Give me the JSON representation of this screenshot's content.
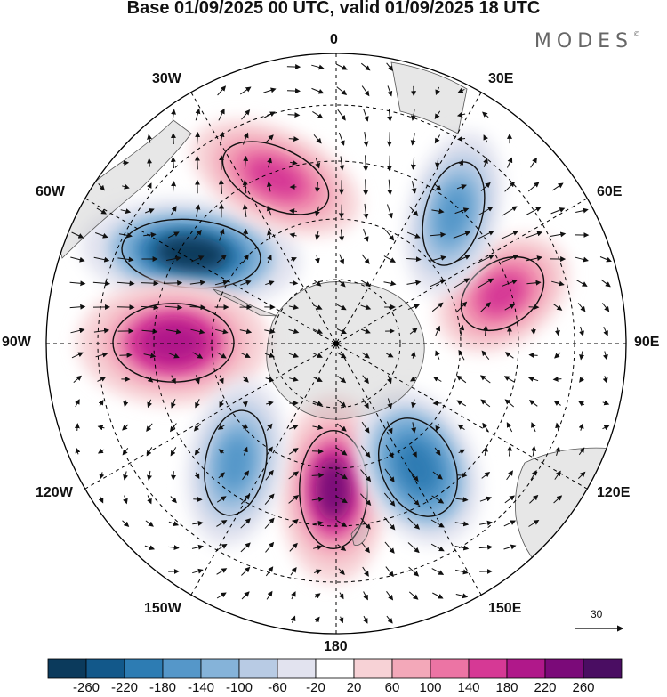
{
  "title": "Base 01/09/2025 00 UTC, valid 01/09/2025 18 UTC",
  "brand": "MODES",
  "brand_mark": "©",
  "longitude_labels": [
    "0",
    "30E",
    "60E",
    "90E",
    "120E",
    "150E",
    "180",
    "150W",
    "120W",
    "90W",
    "60W",
    "30W"
  ],
  "reference_vector_label": "30",
  "colorbar": {
    "labels": [
      "-260",
      "-220",
      "-180",
      "-140",
      "-100",
      "-60",
      "-20",
      "20",
      "60",
      "100",
      "140",
      "180",
      "220",
      "260"
    ],
    "colors": [
      "#0b3a5c",
      "#12588a",
      "#2d7cb3",
      "#5597c9",
      "#85b3d9",
      "#b8cbe4",
      "#e2e3ef",
      "#ffffff",
      "#f7d2d6",
      "#f3a8b9",
      "#ec74a4",
      "#d63995",
      "#b0188a",
      "#7b0a79",
      "#4a0d62"
    ]
  },
  "anomaly_centers": [
    {
      "name": "negative-south-atlantic",
      "sign": -1,
      "strength": 270
    },
    {
      "name": "positive-southeast-pacific",
      "sign": 1,
      "strength": 230
    },
    {
      "name": "positive-south-atlantic-north",
      "sign": 1,
      "strength": 180
    },
    {
      "name": "positive-indian-ocean",
      "sign": 1,
      "strength": 190
    },
    {
      "name": "positive-ross-sea",
      "sign": 1,
      "strength": 240
    },
    {
      "name": "negative-southern-indian",
      "sign": -1,
      "strength": 150
    },
    {
      "name": "negative-east-antarctic",
      "sign": -1,
      "strength": 170
    },
    {
      "name": "negative-pacific",
      "sign": -1,
      "strength": 160
    }
  ]
}
